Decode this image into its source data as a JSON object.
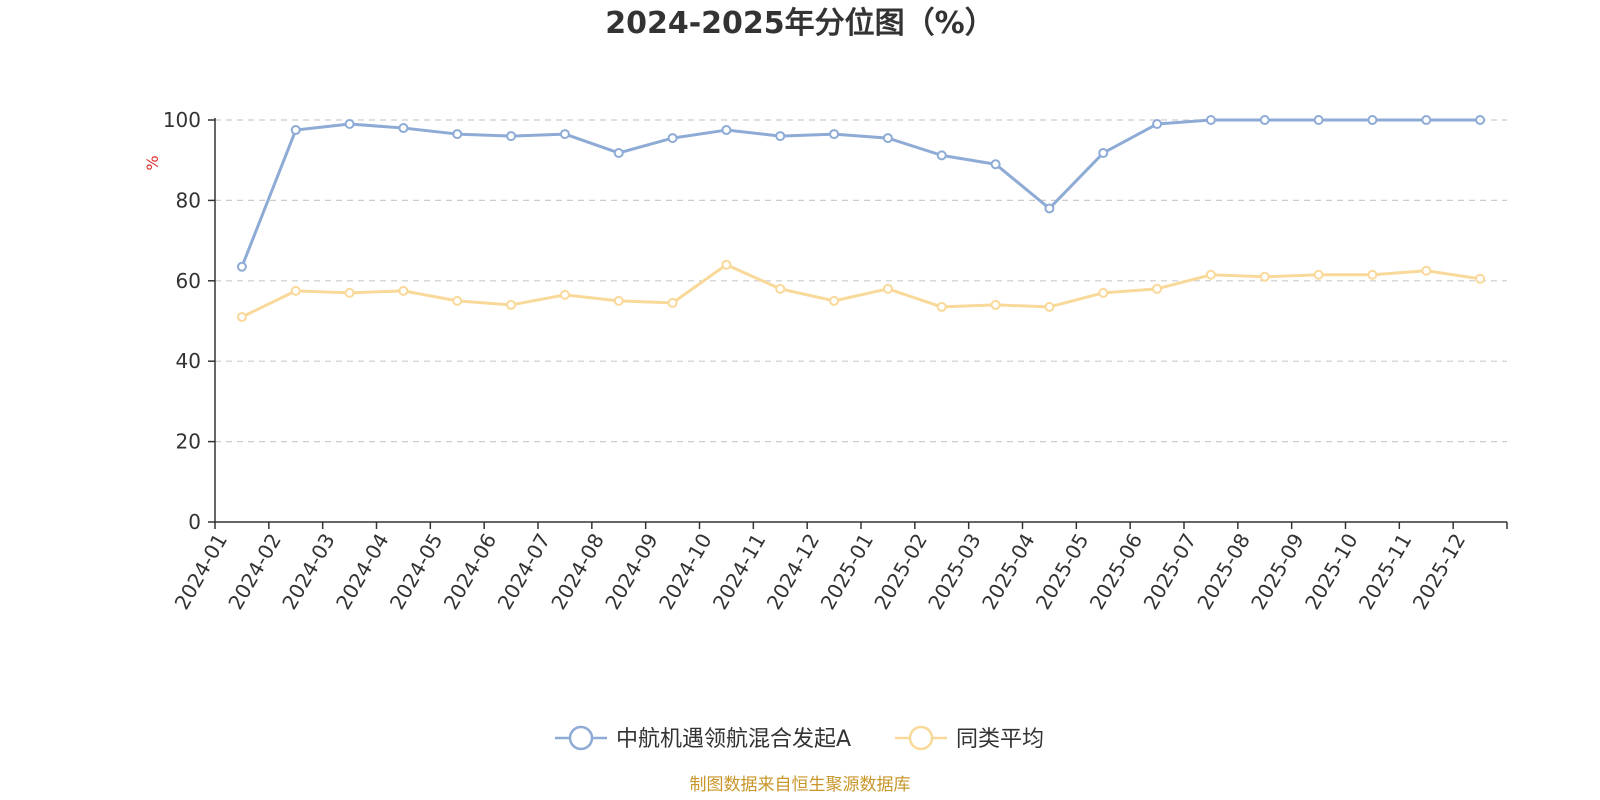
{
  "chart_data": {
    "type": "line",
    "title": "2024-2025年分位图（%）",
    "ylabel": "%",
    "xlabel": "",
    "ylim": [
      0,
      100
    ],
    "yticks": [
      0,
      20,
      40,
      60,
      80,
      100
    ],
    "grid": "horizontal-dashed",
    "legend_position": "bottom-center",
    "categories": [
      "2024-01",
      "2024-02",
      "2024-03",
      "2024-04",
      "2024-05",
      "2024-06",
      "2024-07",
      "2024-08",
      "2024-09",
      "2024-10",
      "2024-11",
      "2024-12",
      "2025-01",
      "2025-02",
      "2025-03",
      "2025-04",
      "2025-05",
      "2025-06",
      "2025-07",
      "2025-08",
      "2025-09",
      "2025-10",
      "2025-11",
      "2025-12"
    ],
    "series": [
      {
        "name": "中航机遇领航混合发起A",
        "color": "#8eabd6",
        "values": [
          63.5,
          97.5,
          99.0,
          98.0,
          96.5,
          96.0,
          96.5,
          91.8,
          95.5,
          97.5,
          96.0,
          96.5,
          95.5,
          91.2,
          89.0,
          78.0,
          91.8,
          99.0,
          100,
          100,
          100,
          100,
          100,
          100
        ]
      },
      {
        "name": "同类平均",
        "color": "#f9d99a",
        "values": [
          51.0,
          57.5,
          57.0,
          57.5,
          55.0,
          54.0,
          56.5,
          55.0,
          54.5,
          64.0,
          58.0,
          55.0,
          58.0,
          53.5,
          54.0,
          53.5,
          57.0,
          58.0,
          61.5,
          61.0,
          61.5,
          61.5,
          62.5,
          60.5
        ]
      }
    ]
  },
  "source_text": "制图数据来自恒生聚源数据库",
  "colors": {
    "axis": "#333333",
    "grid": "#cccccc",
    "ylabel": "#e03030",
    "source": "#c8962a"
  }
}
